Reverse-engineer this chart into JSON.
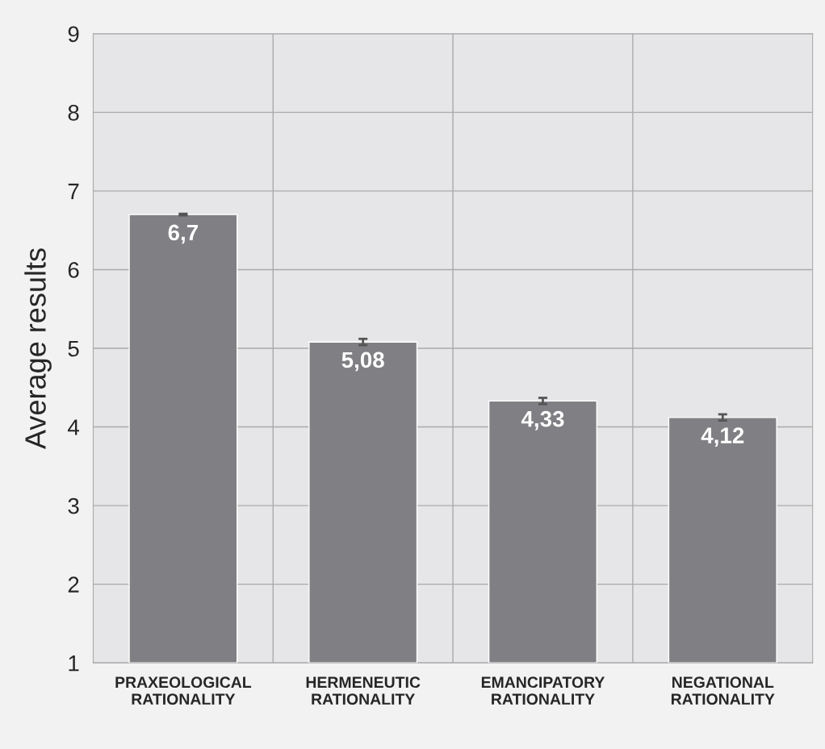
{
  "chart_data": {
    "type": "bar",
    "ylabel": "Average results",
    "categories": [
      "PRAXEOLOGICAL\nRATIONALITY",
      "HERMENEUTIC\nRATIONALITY",
      "EMANCIPATORY\nRATIONALITY",
      "NEGATIONAL\nRATIONALITY"
    ],
    "values": [
      6.7,
      5.08,
      4.33,
      4.12
    ],
    "color": "#808084",
    "errors": [
      0.01,
      0.04,
      0.04,
      0.04
    ],
    "value_labels": [
      "6,7",
      "5,08",
      "4,33",
      "4,12"
    ],
    "ylim": [
      1,
      9
    ],
    "yticks": [
      1,
      2,
      3,
      4,
      5,
      6,
      7,
      8,
      9
    ],
    "grid": true
  }
}
